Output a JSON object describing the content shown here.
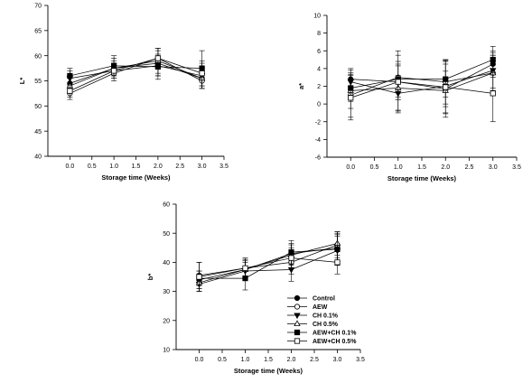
{
  "chart_data": [
    {
      "type": "line",
      "ylabel": "L*",
      "xlabel": "Storage time (Weeks)",
      "xlim": [
        -0.5,
        3.5
      ],
      "ylim": [
        40,
        70
      ],
      "xticks": [
        "0.0",
        "0.5",
        "1.0",
        "1.5",
        "2.0",
        "2.5",
        "3.0",
        "3.5"
      ],
      "yticks": [
        "40",
        "45",
        "50",
        "55",
        "60",
        "65",
        "70"
      ],
      "x": [
        0,
        1,
        2,
        3
      ],
      "series": [
        {
          "name": "Control",
          "marker": "circle-filled",
          "values": [
            54.5,
            57.5,
            58.5,
            55.5
          ],
          "err": [
            1.5,
            1.5,
            2.5,
            2.0
          ]
        },
        {
          "name": "AEW",
          "marker": "circle-open",
          "values": [
            52.5,
            56.5,
            59.5,
            55.0
          ],
          "err": [
            1.2,
            1.5,
            2.0,
            1.5
          ]
        },
        {
          "name": "CH 0.1%",
          "marker": "triangle-down-filled",
          "values": [
            55.5,
            57.0,
            58.0,
            56.0
          ],
          "err": [
            1.5,
            1.5,
            2.0,
            2.5
          ]
        },
        {
          "name": "CH 0.5%",
          "marker": "triangle-up-open",
          "values": [
            54.0,
            57.5,
            59.0,
            55.5
          ],
          "err": [
            1.5,
            2.0,
            2.5,
            2.0
          ]
        },
        {
          "name": "AEW+CH 0.1%",
          "marker": "square-filled",
          "values": [
            56.0,
            58.0,
            57.8,
            57.5
          ],
          "err": [
            1.5,
            2.0,
            2.5,
            3.5
          ]
        },
        {
          "name": "AEW+CH 0.5%",
          "marker": "square-open",
          "values": [
            53.0,
            57.0,
            59.5,
            56.5
          ],
          "err": [
            1.2,
            1.5,
            2.0,
            2.5
          ]
        }
      ]
    },
    {
      "type": "line",
      "ylabel": "a*",
      "xlabel": "Storage time (Weeks)",
      "xlim": [
        -0.5,
        3.5
      ],
      "ylim": [
        -6,
        10
      ],
      "xticks": [
        "0.0",
        "0.5",
        "1.0",
        "1.5",
        "2.0",
        "2.5",
        "3.0",
        "3.5"
      ],
      "yticks": [
        "-6",
        "-4",
        "-2",
        "0",
        "2",
        "4",
        "6",
        "8",
        "10"
      ],
      "x": [
        0,
        1,
        2,
        3
      ],
      "series": [
        {
          "name": "Control",
          "marker": "circle-filled",
          "values": [
            2.8,
            2.5,
            1.7,
            4.5
          ],
          "err": [
            1.0,
            2.0,
            2.0,
            1.5
          ]
        },
        {
          "name": "AEW",
          "marker": "circle-open",
          "values": [
            1.0,
            3.0,
            2.5,
            3.5
          ],
          "err": [
            2.5,
            2.5,
            2.5,
            2.0
          ]
        },
        {
          "name": "CH 0.1%",
          "marker": "triangle-down-filled",
          "values": [
            2.5,
            1.2,
            2.0,
            3.8
          ],
          "err": [
            1.5,
            2.0,
            3.0,
            2.0
          ]
        },
        {
          "name": "CH 0.5%",
          "marker": "triangle-up-open",
          "values": [
            1.5,
            1.8,
            1.5,
            3.5
          ],
          "err": [
            2.0,
            2.5,
            3.0,
            2.0
          ]
        },
        {
          "name": "AEW+CH 0.1%",
          "marker": "square-filled",
          "values": [
            1.8,
            2.8,
            2.8,
            5.0
          ],
          "err": [
            1.5,
            2.0,
            2.0,
            1.5
          ]
        },
        {
          "name": "AEW+CH 0.5%",
          "marker": "square-open",
          "values": [
            0.7,
            2.5,
            1.9,
            1.2
          ],
          "err": [
            2.5,
            3.5,
            3.0,
            3.2
          ]
        }
      ]
    },
    {
      "type": "line",
      "ylabel": "b*",
      "xlabel": "Storage time (Weeks)",
      "xlim": [
        -0.5,
        3.5
      ],
      "ylim": [
        10,
        60
      ],
      "xticks": [
        "0.0",
        "0.5",
        "1.0",
        "1.5",
        "2.0",
        "2.5",
        "3.0",
        "3.5"
      ],
      "yticks": [
        "10",
        "20",
        "30",
        "40",
        "50",
        "60"
      ],
      "x": [
        0,
        1,
        2,
        3
      ],
      "legend": "bottom-right",
      "series": [
        {
          "name": "Control",
          "marker": "circle-filled",
          "values": [
            34.0,
            37.5,
            43.0,
            45.0
          ],
          "err": [
            3.0,
            3.0,
            3.5,
            4.5
          ]
        },
        {
          "name": "AEW",
          "marker": "circle-open",
          "values": [
            35.5,
            38.0,
            40.0,
            46.0
          ],
          "err": [
            4.5,
            3.0,
            4.0,
            4.5
          ]
        },
        {
          "name": "CH 0.1%",
          "marker": "triangle-down-filled",
          "values": [
            32.5,
            37.0,
            37.5,
            44.0
          ],
          "err": [
            2.5,
            3.0,
            4.0,
            5.0
          ]
        },
        {
          "name": "CH 0.5%",
          "marker": "triangle-up-open",
          "values": [
            33.0,
            37.5,
            42.5,
            46.5
          ],
          "err": [
            3.0,
            3.5,
            3.5,
            4.0
          ]
        },
        {
          "name": "AEW+CH 0.1%",
          "marker": "square-filled",
          "values": [
            34.5,
            34.5,
            43.5,
            44.5
          ],
          "err": [
            2.5,
            4.0,
            4.0,
            5.5
          ]
        },
        {
          "name": "AEW+CH 0.5%",
          "marker": "square-open",
          "values": [
            35.0,
            38.0,
            41.5,
            40.0
          ],
          "err": [
            5.0,
            3.5,
            3.5,
            4.0
          ]
        }
      ]
    }
  ]
}
